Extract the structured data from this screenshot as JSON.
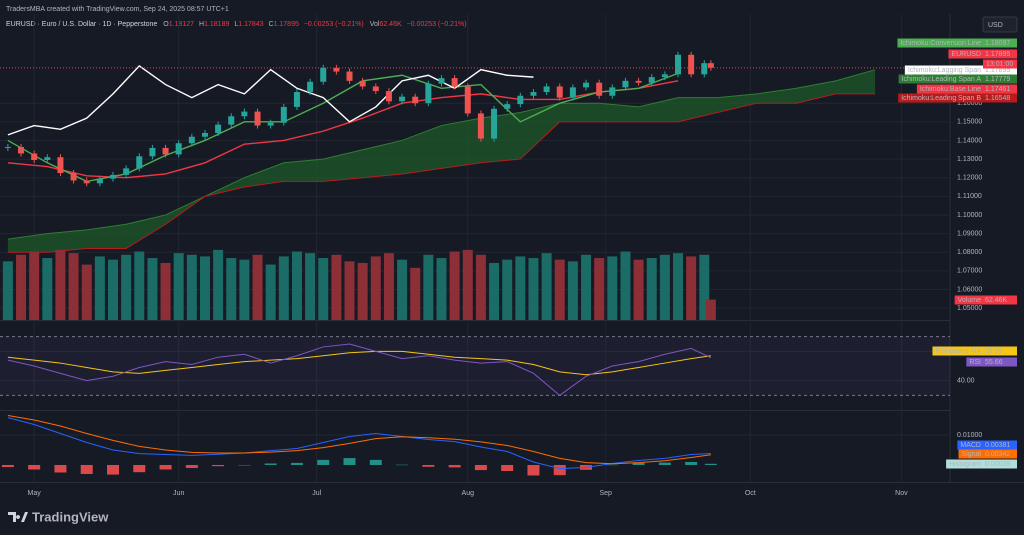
{
  "header": {
    "credit": "TradersMBA created with TradingView.com, Sep 24, 2025 08:57 UTC+1",
    "legend": [
      "EURUSD · Euro / U.S. Dollar · 1D · Pepperstone",
      "O",
      "1.18127",
      "H",
      "1.18189",
      "L",
      "1.17843",
      "C",
      "1.17895",
      "−0.00253 (−0.21%)",
      "Vol",
      "62.46K",
      "−0.00253 (−0.21%)"
    ],
    "currency": "USD",
    "logo": "TradingView"
  },
  "chart_data": [
    {
      "type": "candlestick",
      "up_color": "#26a69a",
      "down_color": "#ef5350",
      "x": [
        0,
        2,
        4,
        6,
        8,
        10,
        12,
        14,
        16,
        18,
        20,
        22,
        24,
        26,
        28,
        30,
        32,
        34,
        36,
        38,
        40,
        42,
        44,
        46,
        48,
        50,
        52,
        54,
        56,
        58,
        60,
        62,
        64,
        66,
        68,
        70,
        72,
        74,
        76,
        78,
        80,
        82,
        84,
        86,
        88,
        90,
        92,
        94,
        96,
        98,
        100,
        102,
        104,
        106,
        107
      ],
      "values": [
        1.1365,
        1.133,
        1.1295,
        1.131,
        1.1225,
        1.1185,
        1.117,
        1.1195,
        1.1215,
        1.125,
        1.1315,
        1.136,
        1.1325,
        1.1385,
        1.142,
        1.144,
        1.1485,
        1.153,
        1.1555,
        1.148,
        1.1495,
        1.158,
        1.166,
        1.1715,
        1.179,
        1.177,
        1.172,
        1.169,
        1.1665,
        1.161,
        1.1635,
        1.16,
        1.1705,
        1.1735,
        1.169,
        1.1545,
        1.141,
        1.157,
        1.1595,
        1.164,
        1.166,
        1.169,
        1.163,
        1.1685,
        1.171,
        1.164,
        1.1685,
        1.172,
        1.171,
        1.174,
        1.1755,
        1.186,
        1.1755,
        1.1815,
        1.179
      ],
      "xlim": [
        -1.2,
        143.4
      ],
      "xticks": [
        {
          "value": 4,
          "label": "May"
        },
        {
          "value": 26,
          "label": "Jun"
        },
        {
          "value": 47,
          "label": "Jul"
        },
        {
          "value": 70,
          "label": "Aug"
        },
        {
          "value": 91,
          "label": "Sep"
        },
        {
          "value": 113,
          "label": "Oct"
        },
        {
          "value": 136,
          "label": "Nov"
        }
      ],
      "ylim": [
        1.0436,
        1.1993
      ],
      "yticks": [
        {
          "value": 1.05,
          "label": "1.05000"
        },
        {
          "value": 1.06,
          "label": "1.06000"
        },
        {
          "value": 1.07,
          "label": "1.07000"
        },
        {
          "value": 1.08,
          "label": "1.08000"
        },
        {
          "value": 1.09,
          "label": "1.09000"
        },
        {
          "value": 1.1,
          "label": "1.10000"
        },
        {
          "value": 1.11,
          "label": "1.11000"
        },
        {
          "value": 1.12,
          "label": "1.12000"
        },
        {
          "value": 1.13,
          "label": "1.13000"
        },
        {
          "value": 1.14,
          "label": "1.14000"
        },
        {
          "value": 1.15,
          "label": "1.15000"
        },
        {
          "value": 1.16,
          "label": "1.16000"
        }
      ],
      "cloud_color": "#1e5a2a",
      "series": [
        {
          "name": "Ichimoku:Leading Span A",
          "color": "#2e7d32",
          "x": [
            0,
            6,
            12,
            18,
            24,
            30,
            36,
            42,
            48,
            54,
            60,
            66,
            72,
            78,
            84,
            90,
            96,
            102,
            108,
            114,
            120,
            126,
            132
          ],
          "values": [
            1.087,
            1.09,
            1.092,
            1.095,
            1.1,
            1.11,
            1.12,
            1.128,
            1.13,
            1.135,
            1.14,
            1.148,
            1.152,
            1.155,
            1.16,
            1.16,
            1.158,
            1.163,
            1.163,
            1.165,
            1.168,
            1.172,
            1.178
          ],
          "last": 1.17779
        },
        {
          "name": "Ichimoku:Leading Span B",
          "color": "#b71c1c",
          "x": [
            0,
            6,
            12,
            18,
            24,
            30,
            36,
            42,
            48,
            54,
            60,
            66,
            72,
            78,
            84,
            90,
            96,
            102,
            108,
            114,
            120,
            126,
            132
          ],
          "values": [
            1.08,
            1.08,
            1.082,
            1.082,
            1.095,
            1.11,
            1.115,
            1.118,
            1.118,
            1.12,
            1.122,
            1.125,
            1.128,
            1.13,
            1.15,
            1.15,
            1.15,
            1.15,
            1.155,
            1.16,
            1.16,
            1.165,
            1.165
          ],
          "last": 1.16548
        },
        {
          "name": "Ichimoku:Base Line",
          "color": "#f23645",
          "x": [
            0,
            6,
            12,
            18,
            24,
            30,
            36,
            42,
            48,
            54,
            60,
            66,
            72,
            78,
            84,
            90,
            96,
            102
          ],
          "values": [
            1.128,
            1.126,
            1.121,
            1.12,
            1.122,
            1.128,
            1.138,
            1.14,
            1.145,
            1.152,
            1.16,
            1.163,
            1.165,
            1.162,
            1.162,
            1.166,
            1.168,
            1.172
          ],
          "last": 1.17461
        },
        {
          "name": "Ichimoku:Conversion Line",
          "color": "#4caf50",
          "x": [
            0,
            6,
            12,
            18,
            24,
            30,
            36,
            42,
            48,
            54,
            60,
            66,
            72,
            78,
            84,
            90,
            96,
            102
          ],
          "values": [
            1.14,
            1.128,
            1.118,
            1.122,
            1.132,
            1.14,
            1.15,
            1.15,
            1.16,
            1.172,
            1.175,
            1.168,
            1.17,
            1.15,
            1.16,
            1.166,
            1.168,
            1.176
          ],
          "last": 1.18097
        },
        {
          "name": "Ichimoku:Lagging Span",
          "color": "#ffffff",
          "x": [
            0,
            4,
            8,
            12,
            16,
            20,
            24,
            28,
            32,
            36,
            40,
            44,
            48,
            52,
            56,
            60,
            64,
            68,
            72,
            76,
            80
          ],
          "values": [
            1.143,
            1.148,
            1.146,
            1.152,
            1.165,
            1.18,
            1.17,
            1.163,
            1.17,
            1.165,
            1.178,
            1.168,
            1.163,
            1.15,
            1.158,
            1.172,
            1.175,
            1.168,
            1.178,
            1.175,
            1.174
          ],
          "last": 1.17895
        }
      ],
      "symbol_label": {
        "name": "EURUSD",
        "value": 1.17895,
        "countdown": "13:01:00",
        "color": "#f23645"
      }
    },
    {
      "type": "volume",
      "up_color": "#1b6b67",
      "down_color": "#8c2f36",
      "x": [
        0,
        2,
        4,
        6,
        8,
        10,
        12,
        14,
        16,
        18,
        20,
        22,
        24,
        26,
        28,
        30,
        32,
        34,
        36,
        38,
        40,
        42,
        44,
        46,
        48,
        50,
        52,
        54,
        56,
        58,
        60,
        62,
        64,
        66,
        68,
        70,
        72,
        74,
        76,
        78,
        80,
        82,
        84,
        86,
        88,
        90,
        92,
        94,
        96,
        98,
        100,
        102,
        104,
        106,
        107
      ],
      "values": [
        180000,
        200000,
        210000,
        190000,
        215000,
        205000,
        170000,
        195000,
        185000,
        200000,
        210000,
        190000,
        175000,
        205000,
        200000,
        195000,
        215000,
        190000,
        185000,
        200000,
        170000,
        195000,
        210000,
        205000,
        190000,
        200000,
        180000,
        175000,
        195000,
        205000,
        185000,
        160000,
        200000,
        190000,
        210000,
        215000,
        200000,
        175000,
        185000,
        195000,
        190000,
        205000,
        185000,
        180000,
        200000,
        190000,
        195000,
        210000,
        185000,
        190000,
        200000,
        205000,
        195000,
        200000,
        62460
      ],
      "ylim": [
        0,
        230000
      ],
      "last_label": {
        "name": "Volume",
        "value": 62460,
        "label": "62.46K",
        "color": "#f23645"
      }
    },
    {
      "type": "line",
      "x": [
        0,
        4,
        8,
        12,
        16,
        20,
        24,
        28,
        32,
        36,
        40,
        44,
        48,
        52,
        56,
        60,
        64,
        68,
        72,
        76,
        80,
        84,
        88,
        92,
        96,
        100,
        104,
        107
      ],
      "series": [
        {
          "name": "RSI-based MA",
          "color": "#f5c518",
          "values": [
            56,
            54,
            52,
            49,
            46,
            45,
            47,
            49,
            51,
            53,
            54,
            55,
            57,
            59,
            60,
            60,
            58,
            56,
            55,
            54,
            51,
            46,
            44,
            46,
            49,
            52,
            55,
            56.95
          ],
          "last": 56.95
        },
        {
          "name": "RSI",
          "color": "#7e57c2",
          "values": [
            54,
            50,
            45,
            40,
            43,
            49,
            53,
            51,
            56,
            58,
            52,
            57,
            63,
            65,
            60,
            55,
            57,
            54,
            52,
            53,
            45,
            30,
            43,
            50,
            53,
            58,
            62,
            55.66
          ],
          "last": 55.66
        }
      ],
      "bands": [
        70,
        30
      ],
      "ylim": [
        20,
        80
      ],
      "yticks": [
        {
          "value": 40,
          "label": "40.00"
        },
        {
          "value": 60,
          "label": "60.00"
        }
      ]
    },
    {
      "type": "macd",
      "x": [
        0,
        4,
        8,
        12,
        16,
        20,
        24,
        28,
        32,
        36,
        40,
        44,
        48,
        52,
        56,
        60,
        64,
        68,
        72,
        76,
        80,
        84,
        88,
        92,
        96,
        100,
        104,
        107
      ],
      "histogram": {
        "name": "Histogram",
        "up_color": "#26a69a",
        "down_color": "#ff5252",
        "values": [
          -0.0007,
          -0.0015,
          -0.0025,
          -0.003,
          -0.0032,
          -0.0024,
          -0.0015,
          -0.001,
          -0.0004,
          0,
          0.0005,
          0.0007,
          0.0017,
          0.0023,
          0.0017,
          0.0001,
          -0.0006,
          -0.0008,
          -0.0017,
          -0.002,
          -0.0035,
          -0.0034,
          -0.0016,
          0.0001,
          0.0007,
          0.0008,
          0.001,
          0.00039
        ],
        "last": 0.00039
      },
      "series": [
        {
          "name": "MACD",
          "color": "#2962ff",
          "values": [
            0.0158,
            0.0135,
            0.0105,
            0.0075,
            0.005,
            0.0038,
            0.0035,
            0.0032,
            0.0036,
            0.004,
            0.0048,
            0.0055,
            0.0075,
            0.0095,
            0.0105,
            0.0095,
            0.0085,
            0.0078,
            0.006,
            0.0045,
            0.001,
            -0.0012,
            -0.0008,
            0.0005,
            0.0015,
            0.0022,
            0.0035,
            0.00381
          ],
          "last": 0.00381
        },
        {
          "name": "Signal",
          "color": "#ff6d00",
          "values": [
            0.0165,
            0.015,
            0.013,
            0.0105,
            0.0082,
            0.0062,
            0.005,
            0.0042,
            0.004,
            0.004,
            0.0043,
            0.0048,
            0.0058,
            0.0072,
            0.0088,
            0.0094,
            0.0091,
            0.0086,
            0.0077,
            0.0065,
            0.0045,
            0.0022,
            0.0008,
            0.0004,
            0.0008,
            0.0014,
            0.0025,
            0.00342
          ],
          "last": 0.00342
        }
      ],
      "ylim": [
        -0.00567,
        0.01733
      ],
      "yticks": [
        {
          "value": 0.01,
          "label": "0.01000"
        }
      ]
    }
  ]
}
